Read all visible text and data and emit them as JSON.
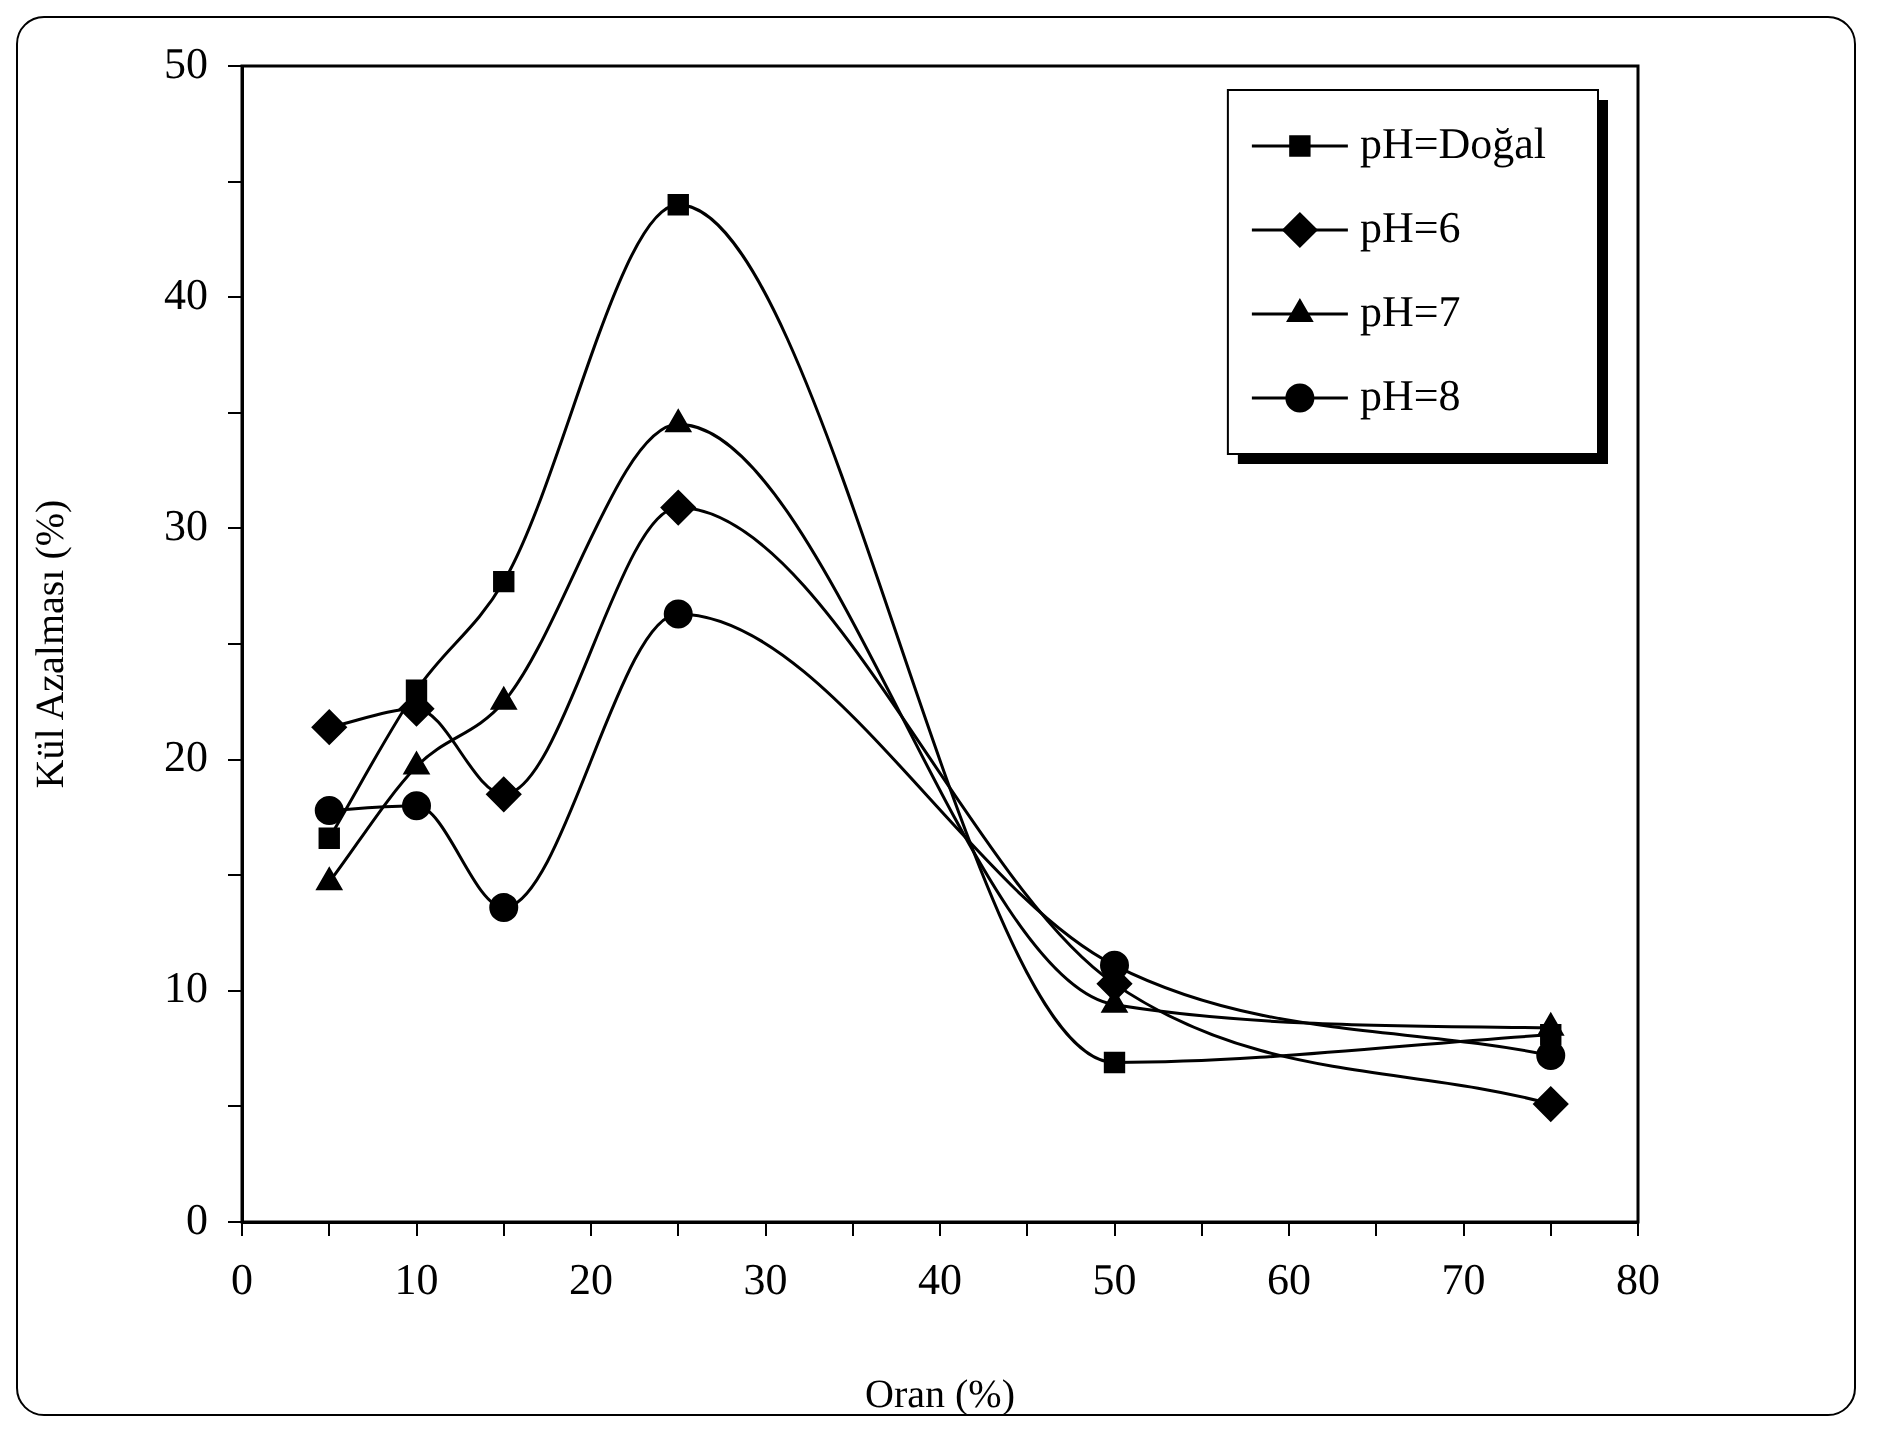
{
  "chart_data": {
    "type": "line",
    "xlabel": "Oran (%)",
    "ylabel": "Kül Azalması (%)",
    "x": [
      5,
      10,
      15,
      25,
      50,
      75
    ],
    "xlim": [
      0,
      80
    ],
    "xticks": [
      0,
      {
        "value": 5,
        "label": null
      },
      10,
      {
        "value": 15,
        "label": null
      },
      20,
      {
        "value": 25,
        "label": null
      },
      30,
      {
        "value": 35,
        "label": null
      },
      40,
      {
        "value": 45,
        "label": null
      },
      50,
      {
        "value": 55,
        "label": null
      },
      60,
      {
        "value": 65,
        "label": null
      },
      70,
      {
        "value": 75,
        "label": null
      },
      80
    ],
    "ylim": [
      0,
      50
    ],
    "yticks": [
      0,
      {
        "value": 5,
        "label": null
      },
      10,
      {
        "value": 15,
        "label": null
      },
      20,
      {
        "value": 25,
        "label": null
      },
      30,
      {
        "value": 35,
        "label": null
      },
      40,
      {
        "value": 45,
        "label": null
      },
      50
    ],
    "grid": false,
    "legend": "top right",
    "line_style": "solid",
    "series": [
      {
        "name": "pH=Doğal",
        "color": "#000000",
        "marker": "square",
        "values": [
          16.6,
          23.0,
          27.7,
          44.0,
          6.9,
          8.1
        ]
      },
      {
        "name": "pH=6",
        "color": "#000000",
        "marker": "diamond",
        "values": [
          21.4,
          22.2,
          18.5,
          30.9,
          10.3,
          5.1
        ]
      },
      {
        "name": "pH=7",
        "color": "#000000",
        "marker": "triangle",
        "values": [
          14.7,
          19.7,
          22.5,
          34.5,
          9.4,
          8.4
        ]
      },
      {
        "name": "pH=8",
        "color": "#000000",
        "marker": "circle",
        "values": [
          17.8,
          18.0,
          13.6,
          26.3,
          11.1,
          7.2
        ]
      }
    ]
  }
}
